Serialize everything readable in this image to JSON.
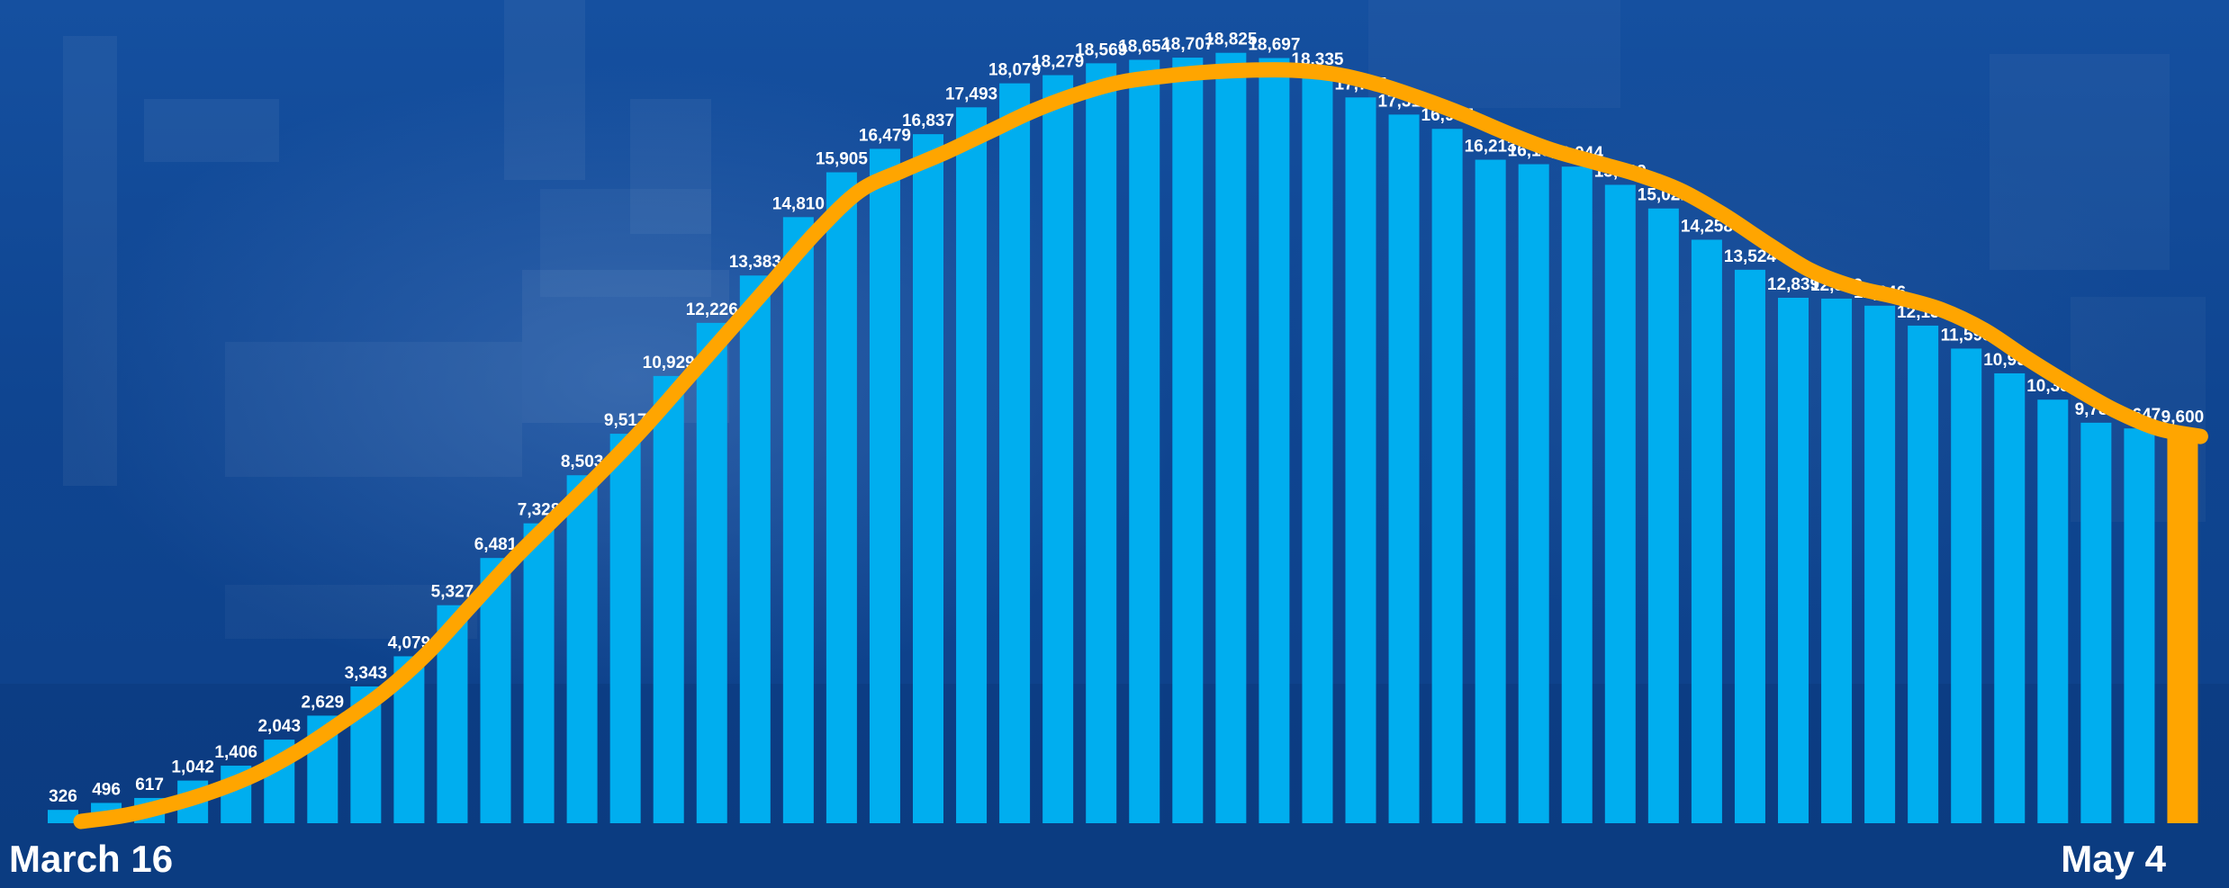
{
  "start_label": "March 16",
  "end_label": "May 4",
  "colors": {
    "bar": "#00aeef",
    "highlight_bar": "#ffa500",
    "trend_line": "#ffa500",
    "label_text": "#ffffff",
    "background": "#0d4088"
  },
  "chart_data": {
    "type": "bar",
    "title": "",
    "xlabel": "",
    "ylabel": "",
    "x_start": "March 16",
    "x_end": "May 4",
    "ylim": [
      0,
      19500
    ],
    "grid": false,
    "values": [
      326,
      496,
      617,
      1042,
      1406,
      2043,
      2629,
      3343,
      4079,
      5327,
      6481,
      7328,
      8503,
      9517,
      10929,
      12226,
      13383,
      14810,
      15905,
      16479,
      16837,
      17493,
      18079,
      18279,
      18569,
      18654,
      18707,
      18825,
      18697,
      18335,
      17735,
      17316,
      16967,
      16213,
      16103,
      16044,
      15599,
      15021,
      14258,
      13524,
      12839,
      12819,
      12646,
      12159,
      11598,
      10993,
      10350,
      9786,
      9647,
      9600
    ],
    "labels": [
      "326",
      "496",
      "617",
      "1,042",
      "1,406",
      "2,043",
      "2,629",
      "3,343",
      "4,079",
      "5,327",
      "6,481",
      "7,328",
      "8,503",
      "9,517",
      "10,929",
      "12,226",
      "13,383",
      "14,810",
      "15,905",
      "16,479",
      "16,837",
      "17,493",
      "18,079",
      "18,279",
      "18,569",
      "18,654",
      "18,707",
      "18,825",
      "18,697",
      "18,335",
      "17,735",
      "17,316",
      "16,967",
      "16,213",
      "16,103",
      "16,044",
      "15,599",
      "15,021",
      "14,258",
      "13,524",
      "12,839",
      "12,819",
      "12,646",
      "12,159",
      "11,598",
      "10,993",
      "10,350",
      "9,786",
      "9,647",
      "9,600"
    ],
    "trend": {
      "type": "line",
      "description_values": [
        0,
        190,
        440,
        760,
        1180,
        1750,
        2450,
        3200,
        4150,
        5300,
        6450,
        7500,
        8550,
        9650,
        10850,
        12050,
        13250,
        14450,
        15450,
        15950,
        16400,
        16900,
        17400,
        17800,
        18100,
        18250,
        18350,
        18400,
        18400,
        18300,
        18050,
        17700,
        17300,
        16850,
        16450,
        16150,
        15850,
        15450,
        14850,
        14150,
        13500,
        13100,
        12850,
        12550,
        12050,
        11350,
        10700,
        10100,
        9650,
        9450
      ]
    }
  }
}
